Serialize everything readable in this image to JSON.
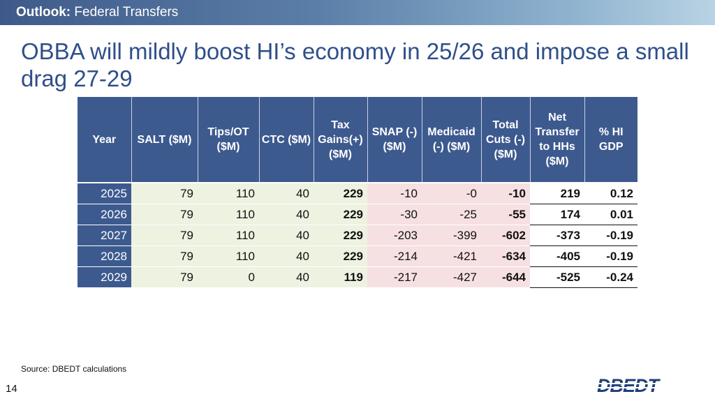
{
  "header": {
    "section": "Outlook:",
    "topic": "Federal Transfers"
  },
  "title": "OBBA will mildly boost HI’s economy in 25/26 and impose a small drag 27-29",
  "table": {
    "columns": [
      "Year",
      "SALT ($M)",
      "Tips/OT ($M)",
      "CTC ($M)",
      "Tax Gains(+) ($M)",
      "SNAP (-) ($M)",
      "Medicaid (-) ($M)",
      "Total Cuts (-) ($M)",
      "Net Transfer to HHs ($M)",
      "% HI GDP"
    ],
    "rows": [
      [
        "2025",
        "79",
        "110",
        "40",
        "229",
        "-10",
        "-0",
        "-10",
        "219",
        "0.12"
      ],
      [
        "2026",
        "79",
        "110",
        "40",
        "229",
        "-30",
        "-25",
        "-55",
        "174",
        "0.01"
      ],
      [
        "2027",
        "79",
        "110",
        "40",
        "229",
        "-203",
        "-399",
        "-602",
        "-373",
        "-0.19"
      ],
      [
        "2028",
        "79",
        "110",
        "40",
        "229",
        "-214",
        "-421",
        "-634",
        "-405",
        "-0.19"
      ],
      [
        "2029",
        "79",
        "0",
        "40",
        "119",
        "-217",
        "-427",
        "-644",
        "-525",
        "-0.24"
      ]
    ]
  },
  "source": "Source: DBEDT calculations",
  "page_number": "14",
  "logo_text": "DBEDT",
  "colors": {
    "header_blue": "#3d5a8f",
    "title_blue": "#2f4f8a",
    "gains_green": "#edf2e1",
    "cuts_pink": "#f6e0e2"
  }
}
